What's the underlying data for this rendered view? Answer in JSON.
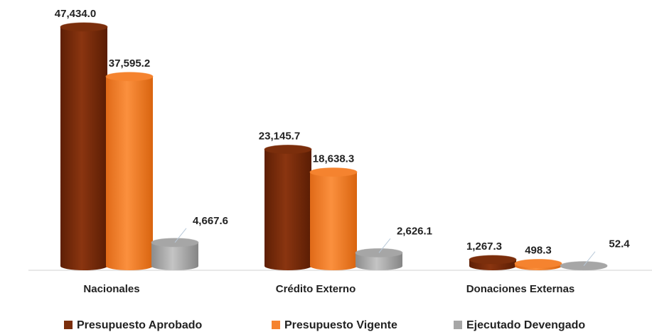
{
  "chart_data": {
    "type": "bar3d",
    "categories": [
      "Nacionales",
      "Crédito Externo",
      "Donaciones Externas"
    ],
    "series": [
      {
        "name": "Presupuesto Aprobado",
        "color": "#7b2e0c",
        "values": [
          47434.0,
          23145.7,
          1267.3
        ],
        "value_labels": [
          "47,434.0",
          "23,145.7",
          "1,267.3"
        ]
      },
      {
        "name": "Presupuesto Vigente",
        "color": "#f5832f",
        "values": [
          37595.2,
          18638.3,
          498.3
        ],
        "value_labels": [
          "37,595.2",
          "18,638.3",
          "498.3"
        ]
      },
      {
        "name": "Ejecutado Devengado",
        "color": "#a6a6a6",
        "values": [
          4667.6,
          2626.1,
          52.4
        ],
        "value_labels": [
          "4,667.6",
          "2,626.1",
          "52.4"
        ]
      }
    ],
    "legend": "bottom"
  }
}
